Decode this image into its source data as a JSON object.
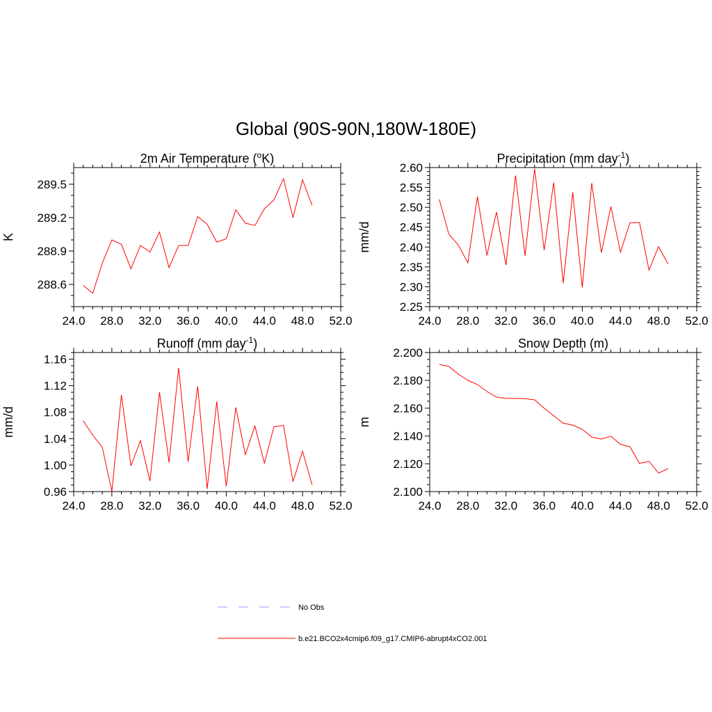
{
  "title": "Global (90S-90N,180W-180E)",
  "colors": {
    "model": "#ff0000",
    "obs": "#9999ff",
    "axis": "#000000"
  },
  "legend": {
    "obs_label": "No Obs",
    "model_label": "b.e21.BCO2x4cmip6.f09_g17.CMIP6-abrupt4xCO2.001"
  },
  "chart_data": [
    {
      "id": "temp",
      "type": "line",
      "title_main": "2m Air Temperature (",
      "title_sup": "o",
      "title_tail": "K)",
      "ylabel": "K",
      "xlim": [
        24,
        52
      ],
      "ylim": [
        288.4,
        289.65
      ],
      "xticks": [
        24,
        28,
        32,
        36,
        40,
        44,
        48,
        52
      ],
      "xtick_labels": [
        "24.0",
        "28.0",
        "32.0",
        "36.0",
        "40.0",
        "44.0",
        "48.0",
        "52.0"
      ],
      "yticks": [
        288.6,
        288.9,
        289.2,
        289.5
      ],
      "ytick_labels": [
        "288.6",
        "288.9",
        "289.2",
        "289.5"
      ],
      "yminor_step": 0.1,
      "x": [
        25,
        26,
        27,
        28,
        29,
        30,
        31,
        32,
        33,
        34,
        35,
        36,
        37,
        38,
        39,
        40,
        41,
        42,
        43,
        44,
        45,
        46,
        47,
        48,
        49
      ],
      "values": [
        288.59,
        288.52,
        288.79,
        289.0,
        288.96,
        288.74,
        288.95,
        288.89,
        289.07,
        288.75,
        288.95,
        288.95,
        289.21,
        289.14,
        288.98,
        289.01,
        289.27,
        289.15,
        289.13,
        289.28,
        289.36,
        289.55,
        289.2,
        289.54,
        289.31
      ]
    },
    {
      "id": "precip",
      "type": "line",
      "title_main": "Precipitation (mm day",
      "title_sup": "-1",
      "title_tail": ")",
      "ylabel": "mm/d",
      "xlim": [
        24,
        52
      ],
      "ylim": [
        2.25,
        2.6
      ],
      "xticks": [
        24,
        28,
        32,
        36,
        40,
        44,
        48,
        52
      ],
      "xtick_labels": [
        "24.0",
        "28.0",
        "32.0",
        "36.0",
        "40.0",
        "44.0",
        "48.0",
        "52.0"
      ],
      "yticks": [
        2.25,
        2.3,
        2.35,
        2.4,
        2.45,
        2.5,
        2.55,
        2.6
      ],
      "ytick_labels": [
        "2.25",
        "2.30",
        "2.35",
        "2.40",
        "2.45",
        "2.50",
        "2.55",
        "2.60"
      ],
      "yminor_step": 0.01,
      "x": [
        25,
        26,
        27,
        28,
        29,
        30,
        31,
        32,
        33,
        34,
        35,
        36,
        37,
        38,
        39,
        40,
        41,
        42,
        43,
        44,
        45,
        46,
        47,
        48,
        49
      ],
      "values": [
        2.52,
        2.433,
        2.405,
        2.36,
        2.527,
        2.379,
        2.488,
        2.355,
        2.58,
        2.378,
        2.597,
        2.392,
        2.562,
        2.309,
        2.538,
        2.298,
        2.561,
        2.386,
        2.502,
        2.387,
        2.461,
        2.462,
        2.342,
        2.401,
        2.357
      ]
    },
    {
      "id": "runoff",
      "type": "line",
      "title_main": "Runoff (mm day",
      "title_sup": "-1",
      "title_tail": ")",
      "ylabel": "mm/d",
      "xlim": [
        24,
        52
      ],
      "ylim": [
        0.96,
        1.17
      ],
      "xticks": [
        24,
        28,
        32,
        36,
        40,
        44,
        48,
        52
      ],
      "xtick_labels": [
        "24.0",
        "28.0",
        "32.0",
        "36.0",
        "40.0",
        "44.0",
        "48.0",
        "52.0"
      ],
      "yticks": [
        0.96,
        1.0,
        1.04,
        1.08,
        1.12,
        1.16
      ],
      "ytick_labels": [
        "0.96",
        "1.00",
        "1.04",
        "1.08",
        "1.12",
        "1.16"
      ],
      "yminor_step": 0.01,
      "x": [
        25,
        26,
        27,
        28,
        29,
        30,
        31,
        32,
        33,
        34,
        35,
        36,
        37,
        38,
        39,
        40,
        41,
        42,
        43,
        44,
        45,
        46,
        47,
        48,
        49
      ],
      "values": [
        1.067,
        1.045,
        1.027,
        0.96,
        1.106,
        0.999,
        1.037,
        0.976,
        1.11,
        1.004,
        1.147,
        1.005,
        1.119,
        0.964,
        1.096,
        0.968,
        1.087,
        1.016,
        1.059,
        1.003,
        1.058,
        1.06,
        0.975,
        1.021,
        0.97
      ]
    },
    {
      "id": "snow",
      "type": "line",
      "title_main": "Snow Depth (m)",
      "title_sup": "",
      "title_tail": "",
      "ylabel": "m",
      "xlim": [
        24,
        52
      ],
      "ylim": [
        2.1,
        2.2
      ],
      "xticks": [
        24,
        28,
        32,
        36,
        40,
        44,
        48,
        52
      ],
      "xtick_labels": [
        "24.0",
        "28.0",
        "32.0",
        "36.0",
        "40.0",
        "44.0",
        "48.0",
        "52.0"
      ],
      "yticks": [
        2.1,
        2.12,
        2.14,
        2.16,
        2.18,
        2.2
      ],
      "ytick_labels": [
        "2.100",
        "2.120",
        "2.140",
        "2.160",
        "2.180",
        "2.200"
      ],
      "yminor_step": 0.005,
      "x": [
        25,
        26,
        27,
        28,
        29,
        30,
        31,
        32,
        33,
        34,
        35,
        36,
        37,
        38,
        39,
        40,
        41,
        42,
        43,
        44,
        45,
        46,
        47,
        48,
        49
      ],
      "values": [
        2.1915,
        2.19,
        2.1845,
        2.18,
        2.177,
        2.172,
        2.168,
        2.167,
        2.167,
        2.1668,
        2.166,
        2.16,
        2.1545,
        2.1492,
        2.1478,
        2.1448,
        2.1392,
        2.1378,
        2.1398,
        2.134,
        2.1322,
        2.1203,
        2.1218,
        2.1133,
        2.1165
      ]
    }
  ]
}
